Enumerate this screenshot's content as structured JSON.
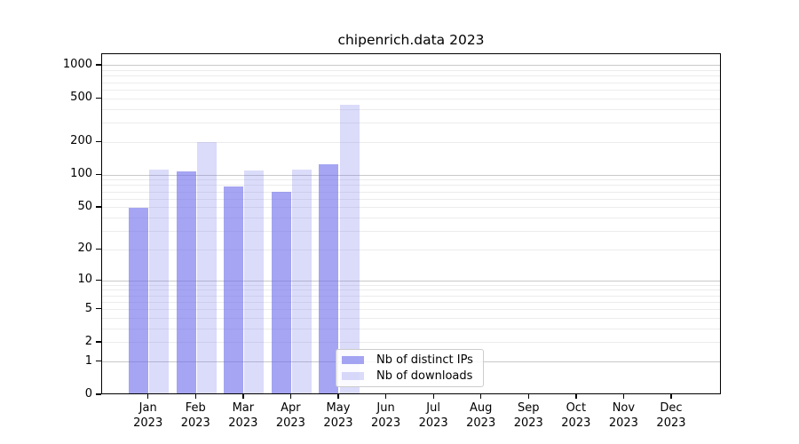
{
  "chart_data": {
    "type": "bar",
    "title": "chipenrich.data 2023",
    "categories": [
      "Jan 2023",
      "Feb 2023",
      "Mar 2023",
      "Apr 2023",
      "May 2023",
      "Jun 2023",
      "Jul 2023",
      "Aug 2023",
      "Sep 2023",
      "Oct 2023",
      "Nov 2023",
      "Dec 2023"
    ],
    "series": [
      {
        "name": "Nb of distinct IPs",
        "color": "rgba(110,110,235,0.62)",
        "values": [
          50,
          108,
          79,
          70,
          125,
          0,
          0,
          0,
          0,
          0,
          0,
          0
        ]
      },
      {
        "name": "Nb of downloads",
        "color": "rgba(110,110,235,0.25)",
        "values": [
          112,
          202,
          110,
          112,
          440,
          0,
          0,
          0,
          0,
          0,
          0,
          0
        ]
      }
    ],
    "y_ticks": [
      0,
      1,
      2,
      5,
      10,
      20,
      50,
      100,
      200,
      500,
      1000
    ],
    "yscale": "log10(1+y)",
    "ylim": [
      0,
      1273
    ],
    "xlabel": "",
    "ylabel": "",
    "grid": "horizontal major and minor gridlines",
    "legend_position": "inside bottom-center"
  },
  "colors": {
    "grid_major": "#c9c9c9",
    "grid_minor": "#ececec",
    "axis_spine": "#000000",
    "legend_border": "#cccccc",
    "background": "#ffffff",
    "text": "#000000"
  }
}
